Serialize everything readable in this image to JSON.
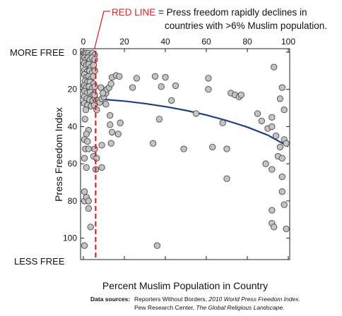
{
  "annotation": {
    "red_part": "RED LINE",
    "line1_rest": " = Press freedom rapidly declines in",
    "line2": "countries with >6% Muslim population."
  },
  "end_labels": {
    "top": "MORE FREE",
    "bottom": "LESS FREE"
  },
  "sources": {
    "label": "Data sources:",
    "line1_plain": "Reporters Without Borders, ",
    "line1_italic": "2010 World Press Freedom Index.",
    "line2_plain": "Pew Research Center, ",
    "line2_italic": "The Global Religious Landscape."
  },
  "colors": {
    "point_fill": "#c4c4c4",
    "point_stroke": "#4a4a4a",
    "trend": "#1f3f7f",
    "threshold": "#e02020"
  },
  "chart_data": {
    "type": "scatter",
    "xlabel": "Percent Muslim Population in Country",
    "ylabel": "Press Freedom Index",
    "xlim": [
      0,
      100
    ],
    "ylim": [
      0,
      110
    ],
    "y_inverted": true,
    "x_ticks": [
      0,
      20,
      40,
      60,
      80,
      100
    ],
    "y_ticks": [
      0,
      20,
      40,
      60,
      80,
      100
    ],
    "threshold_x": 6,
    "trend": {
      "x": [
        0,
        10,
        20,
        30,
        40,
        50,
        60,
        70,
        80,
        90,
        100
      ],
      "y": [
        24.8,
        25.4,
        26.3,
        27.6,
        29.3,
        31.3,
        33.8,
        36.8,
        40.3,
        44.6,
        50.7
      ]
    },
    "points": [
      [
        0.3,
        0.5
      ],
      [
        0.8,
        1
      ],
      [
        1.5,
        0.5
      ],
      [
        2.5,
        0.5
      ],
      [
        3.5,
        1.5
      ],
      [
        4.5,
        0.5
      ],
      [
        5.5,
        1.5
      ],
      [
        0.5,
        3
      ],
      [
        1.2,
        4
      ],
      [
        2.2,
        3
      ],
      [
        3.2,
        4
      ],
      [
        4.2,
        3
      ],
      [
        5.5,
        4
      ],
      [
        0.4,
        6
      ],
      [
        1.4,
        7
      ],
      [
        2.6,
        6.5
      ],
      [
        3.7,
        8
      ],
      [
        5,
        7
      ],
      [
        0.6,
        9.5
      ],
      [
        1.8,
        10.5
      ],
      [
        3,
        10
      ],
      [
        4.3,
        11
      ],
      [
        5.6,
        10
      ],
      [
        0.5,
        12
      ],
      [
        1.5,
        13.5
      ],
      [
        2.6,
        13
      ],
      [
        3.6,
        14.5
      ],
      [
        4.8,
        13
      ],
      [
        0.8,
        15.5
      ],
      [
        2,
        16
      ],
      [
        3.2,
        16
      ],
      [
        5,
        17
      ],
      [
        0.4,
        18
      ],
      [
        1.4,
        19
      ],
      [
        2.8,
        18.5
      ],
      [
        4.2,
        19.5
      ],
      [
        5.6,
        18.5
      ],
      [
        0.6,
        21
      ],
      [
        1.8,
        22
      ],
      [
        3.3,
        21.5
      ],
      [
        4.7,
        23
      ],
      [
        0.5,
        24
      ],
      [
        1.7,
        25
      ],
      [
        3,
        25.5
      ],
      [
        4.5,
        26
      ],
      [
        5.7,
        25
      ],
      [
        0.4,
        27.5
      ],
      [
        2,
        28.5
      ],
      [
        3.8,
        29
      ],
      [
        5.3,
        28.5
      ],
      [
        1.2,
        31
      ],
      [
        5.5,
        23
      ],
      [
        6.5,
        26
      ],
      [
        8,
        27
      ],
      [
        9,
        25
      ],
      [
        10,
        24
      ],
      [
        11,
        22
      ],
      [
        11.5,
        20
      ],
      [
        12.5,
        19
      ],
      [
        13.5,
        17
      ],
      [
        14,
        13.5
      ],
      [
        16,
        12.5
      ],
      [
        17.5,
        13
      ],
      [
        8.5,
        19
      ],
      [
        9.5,
        22
      ],
      [
        11,
        28
      ],
      [
        6.5,
        31
      ],
      [
        0.8,
        36
      ],
      [
        2.5,
        42
      ],
      [
        1.5,
        44
      ],
      [
        0.5,
        47
      ],
      [
        2,
        48
      ],
      [
        1,
        52
      ],
      [
        2.5,
        52
      ],
      [
        0.5,
        57
      ],
      [
        1.5,
        62
      ],
      [
        5,
        56
      ],
      [
        5.5,
        52
      ],
      [
        6.5,
        57
      ],
      [
        9,
        50
      ],
      [
        13.5,
        49
      ],
      [
        13,
        39
      ],
      [
        14,
        43
      ],
      [
        17,
        44
      ],
      [
        18,
        38
      ],
      [
        13,
        34
      ],
      [
        9,
        62
      ],
      [
        6,
        63
      ],
      [
        0.5,
        75
      ],
      [
        0.5,
        80
      ],
      [
        1.5,
        78
      ],
      [
        2.5,
        80
      ],
      [
        2.5,
        84
      ],
      [
        3.5,
        94
      ],
      [
        0.5,
        104
      ],
      [
        24,
        19
      ],
      [
        26,
        14
      ],
      [
        35,
        13
      ],
      [
        38,
        18.5
      ],
      [
        40,
        13.5
      ],
      [
        45,
        18
      ],
      [
        43,
        26
      ],
      [
        37,
        36
      ],
      [
        34,
        49
      ],
      [
        36,
        104
      ],
      [
        49,
        52
      ],
      [
        55,
        33
      ],
      [
        61,
        20
      ],
      [
        61,
        14
      ],
      [
        63,
        51
      ],
      [
        68,
        38
      ],
      [
        70,
        52
      ],
      [
        70,
        68
      ],
      [
        72,
        22
      ],
      [
        74,
        23
      ],
      [
        76,
        24
      ],
      [
        77,
        23
      ],
      [
        85,
        33
      ],
      [
        87,
        37
      ],
      [
        90,
        41
      ],
      [
        92,
        35
      ],
      [
        93,
        8
      ],
      [
        96,
        25
      ],
      [
        97,
        19
      ],
      [
        98,
        31
      ],
      [
        94,
        45
      ],
      [
        96,
        51
      ],
      [
        98,
        47
      ],
      [
        99,
        49
      ],
      [
        92,
        40
      ],
      [
        89,
        60
      ],
      [
        92,
        63
      ],
      [
        95,
        56
      ],
      [
        97,
        67
      ],
      [
        97,
        75
      ],
      [
        98,
        82
      ],
      [
        92,
        85
      ],
      [
        92,
        92
      ],
      [
        93,
        94
      ],
      [
        99,
        95
      ],
      [
        97,
        57
      ]
    ]
  }
}
